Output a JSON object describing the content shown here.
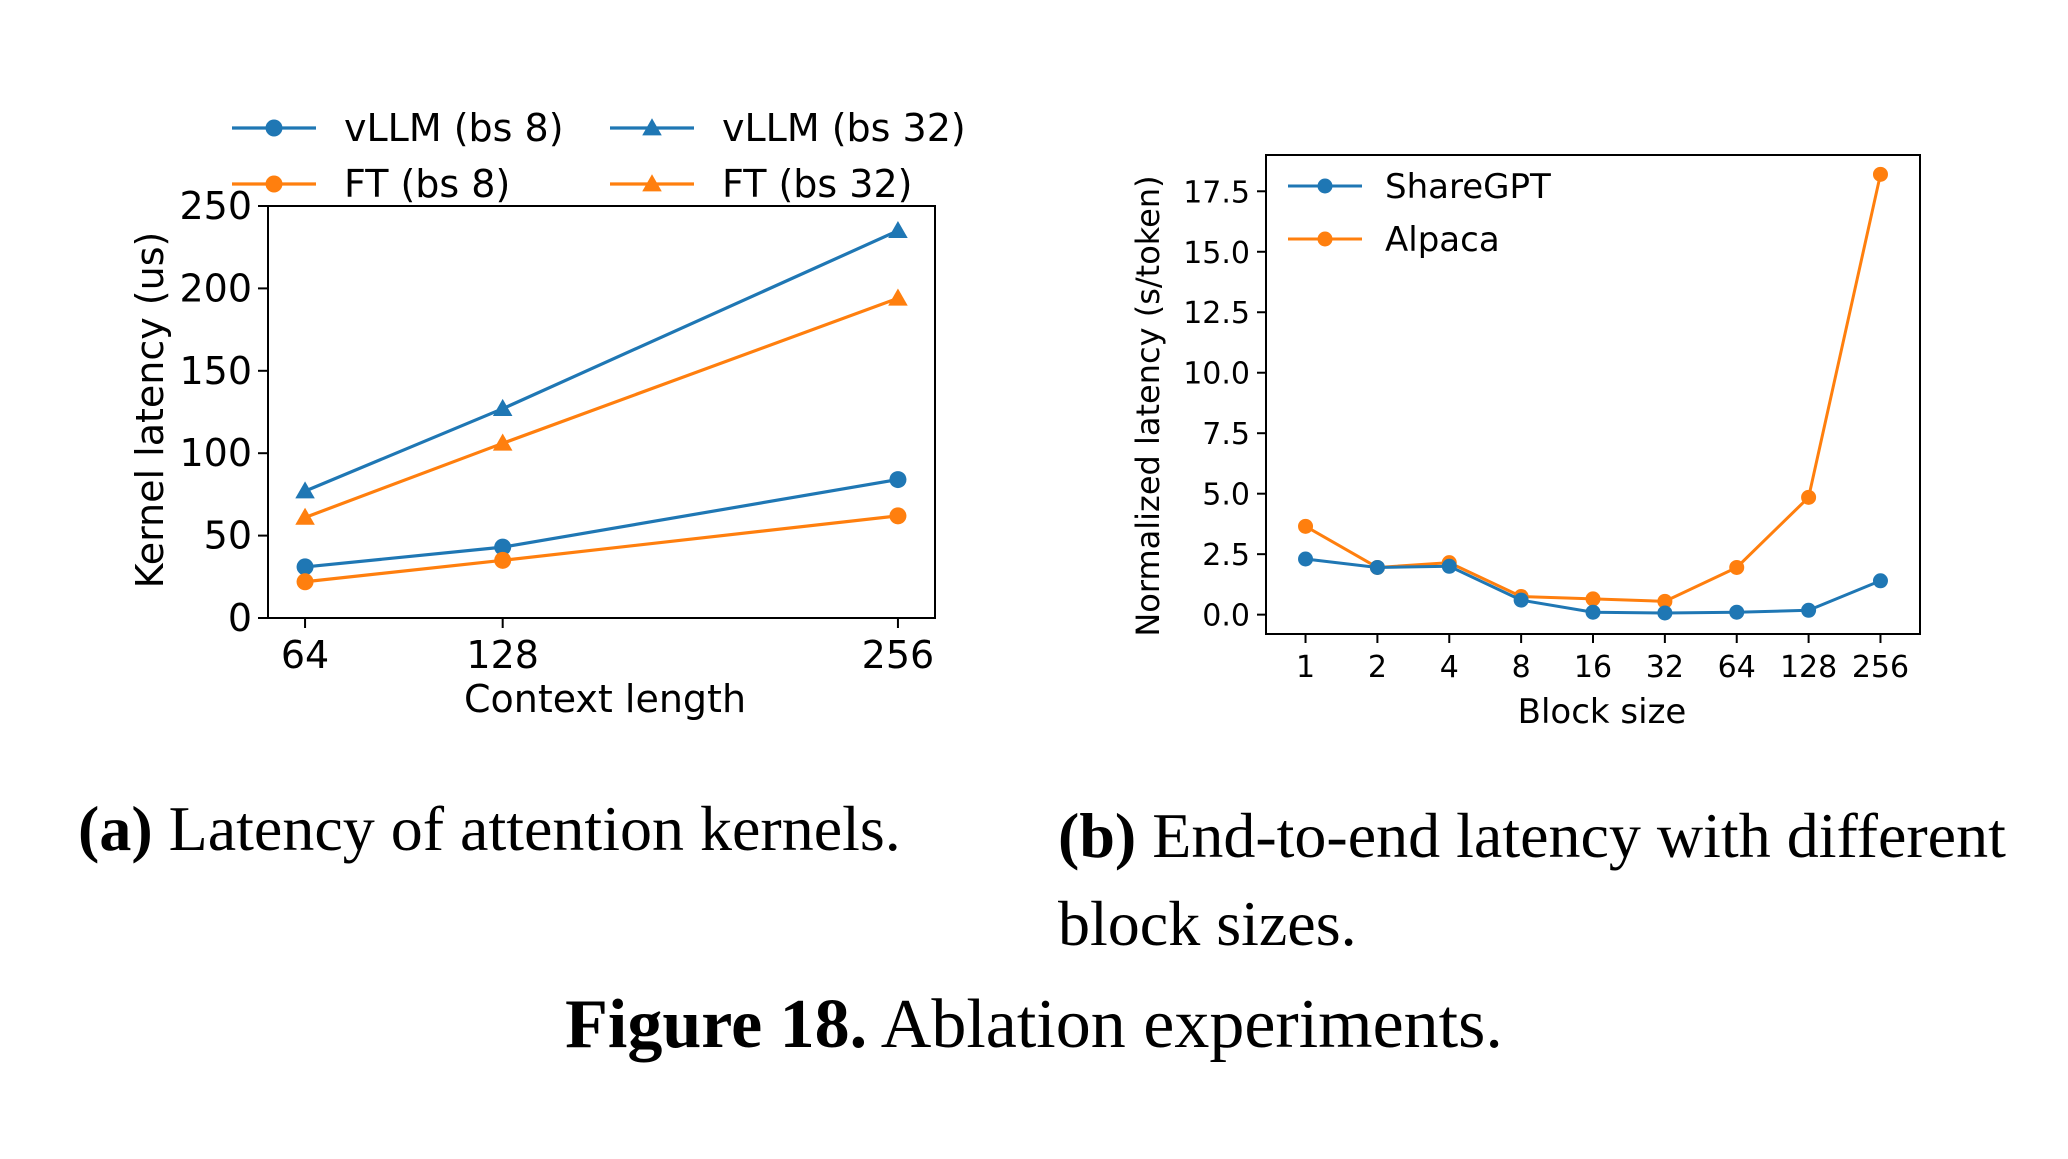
{
  "chart_data": [
    {
      "type": "line",
      "xlabel": "Context length",
      "ylabel": "Kernel latency (us)",
      "x": [
        64,
        128,
        256
      ],
      "x_tick_labels": [
        "64",
        "128",
        "256"
      ],
      "ylim": [
        0,
        250
      ],
      "y_ticks": [
        0,
        50,
        100,
        150,
        200,
        250
      ],
      "grid": false,
      "legend_position": "top, outside (2 columns)",
      "series": [
        {
          "name": "vLLM (bs 8)",
          "color": "#1f77b4",
          "marker": "circle",
          "values": [
            31,
            43,
            84
          ]
        },
        {
          "name": "FT (bs 8)",
          "color": "#ff7f0e",
          "marker": "circle",
          "values": [
            22,
            35,
            62
          ]
        },
        {
          "name": "vLLM (bs 32)",
          "color": "#1f77b4",
          "marker": "triangle",
          "values": [
            77,
            127,
            235
          ]
        },
        {
          "name": "FT (bs 32)",
          "color": "#ff7f0e",
          "marker": "triangle",
          "values": [
            61,
            106,
            194
          ]
        }
      ]
    },
    {
      "type": "line",
      "xlabel": "Block size",
      "ylabel": "Normalized latency (s/token)",
      "categories": [
        "1",
        "2",
        "4",
        "8",
        "16",
        "32",
        "64",
        "128",
        "256"
      ],
      "ylim": [
        -0.8,
        19.0
      ],
      "y_ticks": [
        "0.0",
        "2.5",
        "5.0",
        "7.5",
        "10.0",
        "12.5",
        "15.0",
        "17.5"
      ],
      "grid": false,
      "legend_position": "top-left",
      "series": [
        {
          "name": "ShareGPT",
          "color": "#1f77b4",
          "marker": "circle",
          "values": [
            2.3,
            1.95,
            2.0,
            0.6,
            0.1,
            0.07,
            0.1,
            0.18,
            1.4
          ]
        },
        {
          "name": "Alpaca",
          "color": "#ff7f0e",
          "marker": "circle",
          "values": [
            3.65,
            1.95,
            2.15,
            0.75,
            0.65,
            0.55,
            1.95,
            4.85,
            18.2
          ]
        }
      ]
    }
  ],
  "captions": {
    "a_label": "(a)",
    "a_text": " Latency of attention kernels.",
    "b_label": "(b)",
    "b_text": " End-to-end latency with different block sizes.",
    "fig_label": "Figure 18.",
    "fig_text": " Ablation experiments."
  }
}
